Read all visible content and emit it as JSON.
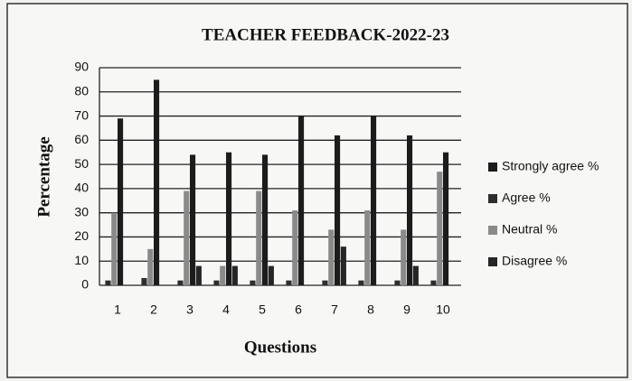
{
  "chart_data": {
    "type": "bar",
    "title": "TEACHER FEEDBACK-2022-23",
    "x_label": "Questions",
    "y_label": "Percentage",
    "categories": [
      "1",
      "2",
      "3",
      "4",
      "5",
      "6",
      "7",
      "8",
      "9",
      "10"
    ],
    "series": [
      {
        "name": "Strongly agree %",
        "color": "#1c1c1c",
        "values": [
          69,
          85,
          54,
          55,
          54,
          70,
          62,
          70,
          62,
          55
        ]
      },
      {
        "name": "Agree %",
        "color": "#2e2e2e",
        "values": [
          2,
          3,
          2,
          2,
          2,
          2,
          2,
          2,
          2,
          2
        ]
      },
      {
        "name": "Neutral %",
        "color": "#8a8a8a",
        "values": [
          30,
          15,
          39,
          8,
          39,
          31,
          23,
          31,
          23,
          47
        ]
      },
      {
        "name": "Disagree %",
        "color": "#262626",
        "values": [
          0,
          0,
          8,
          8,
          8,
          0,
          16,
          0,
          8,
          0
        ]
      }
    ],
    "ylim": [
      0,
      90
    ],
    "yticks": [
      0,
      10,
      20,
      30,
      40,
      50,
      60,
      70,
      80,
      90
    ],
    "grid": true,
    "legend": "right"
  }
}
